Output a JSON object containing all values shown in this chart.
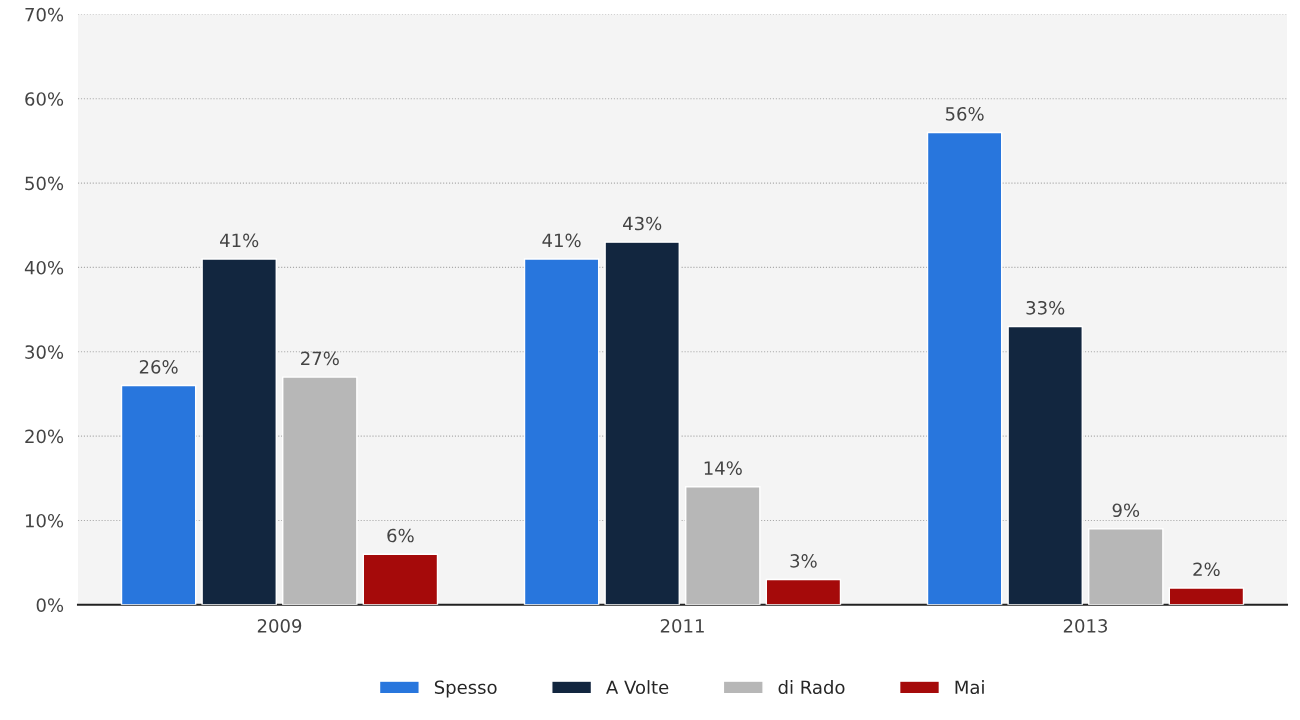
{
  "chart_data": {
    "type": "bar",
    "categories": [
      "2009",
      "2011",
      "2013"
    ],
    "series": [
      {
        "name": "Spesso",
        "color": "#2876dd",
        "values": [
          26,
          41,
          56
        ],
        "value_labels": [
          "26%",
          "41%",
          "56%"
        ]
      },
      {
        "name": "A Volte",
        "color": "#12263f",
        "values": [
          41,
          43,
          33
        ],
        "value_labels": [
          "41%",
          "43%",
          "33%"
        ]
      },
      {
        "name": "di Rado",
        "color": "#b7b7b7",
        "values": [
          27,
          14,
          9
        ],
        "value_labels": [
          "27%",
          "14%",
          "9%"
        ]
      },
      {
        "name": "Mai",
        "color": "#a50a0a",
        "values": [
          6,
          3,
          2
        ],
        "value_labels": [
          "6%",
          "3%",
          "2%"
        ]
      }
    ],
    "ylim": [
      0,
      70
    ],
    "yticks": [
      {
        "value": 0,
        "label": "0%"
      },
      {
        "value": 10,
        "label": "10%"
      },
      {
        "value": 20,
        "label": "20%"
      },
      {
        "value": 30,
        "label": "30%"
      },
      {
        "value": 40,
        "label": "40%"
      },
      {
        "value": 50,
        "label": "50%"
      },
      {
        "value": 60,
        "label": "60%"
      },
      {
        "value": 70,
        "label": "70%"
      }
    ],
    "grid": "y",
    "legend": "bottom"
  }
}
